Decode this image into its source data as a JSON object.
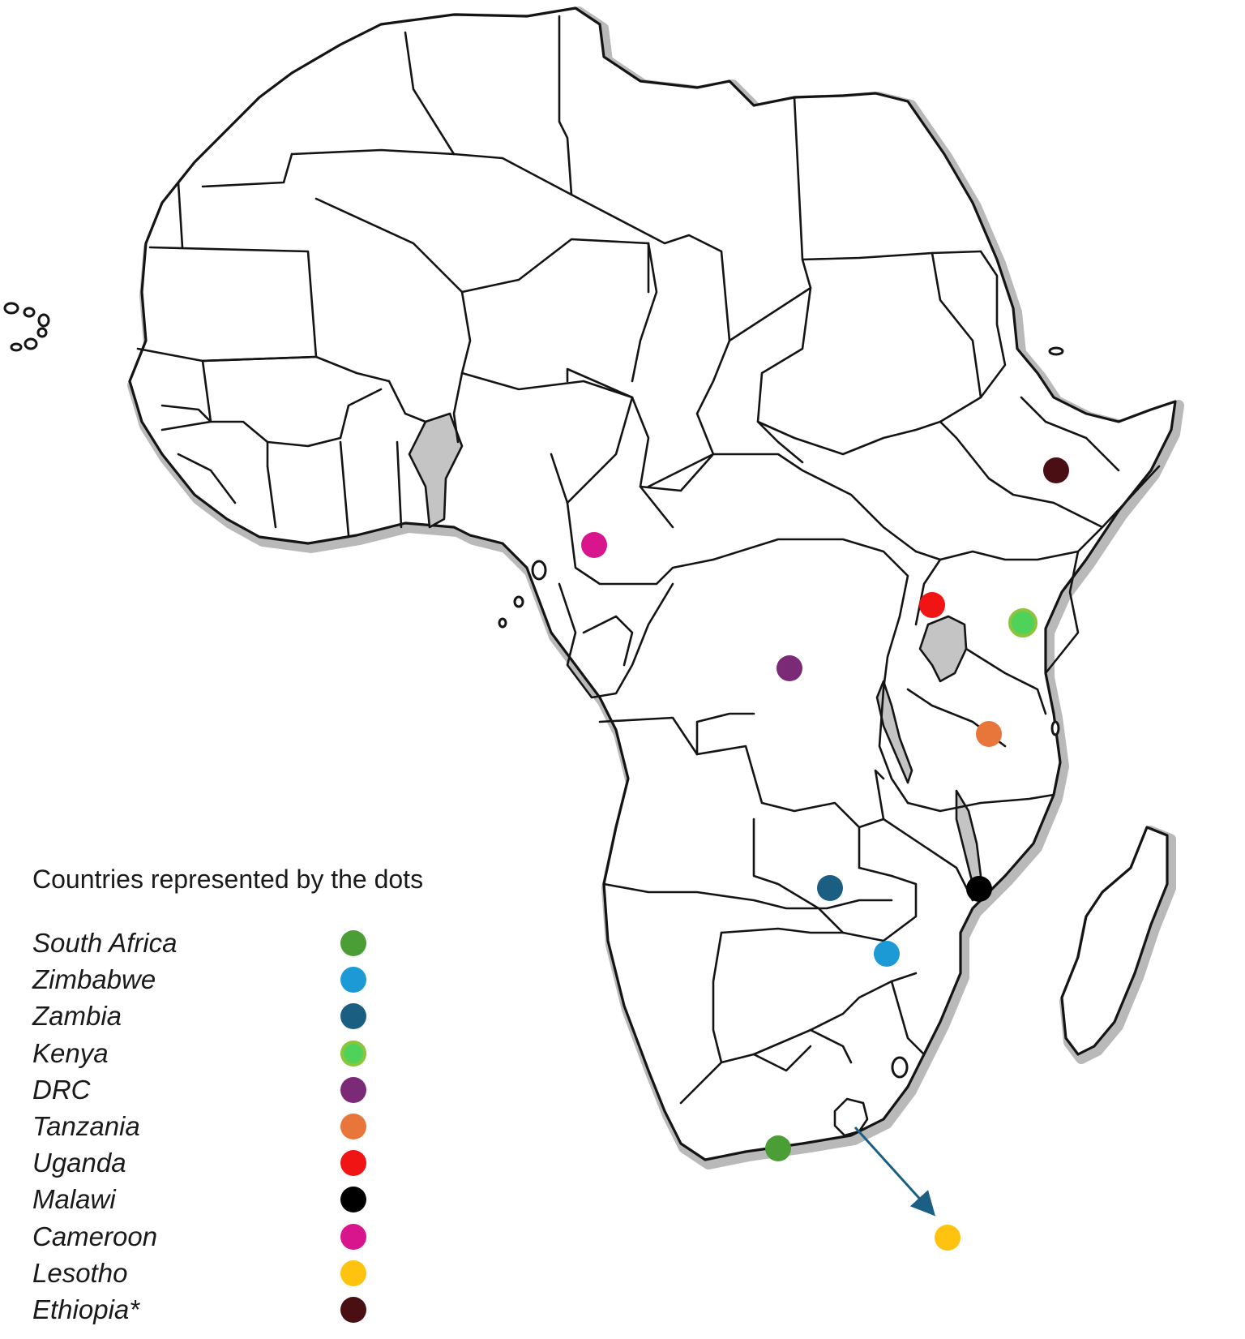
{
  "legend": {
    "title": "Countries represented by the dots",
    "items": [
      {
        "key": "south-africa",
        "name": "South Africa",
        "color": "#4a9e35"
      },
      {
        "key": "zimbabwe",
        "name": "Zimbabwe",
        "color": "#1b9ad6"
      },
      {
        "key": "zambia",
        "name": "Zambia",
        "color": "#1a5f82"
      },
      {
        "key": "kenya",
        "name": "Kenya",
        "color": "#4fd25a",
        "ring": "#8cc43c"
      },
      {
        "key": "drc",
        "name": "DRC",
        "color": "#7a2a76"
      },
      {
        "key": "tanzania",
        "name": "Tanzania",
        "color": "#e8763a"
      },
      {
        "key": "uganda",
        "name": "Uganda",
        "color": "#f01414"
      },
      {
        "key": "malawi",
        "name": "Malawi",
        "color": "#000000"
      },
      {
        "key": "cameroon",
        "name": "Cameroon",
        "color": "#d9158e"
      },
      {
        "key": "lesotho",
        "name": "Lesotho",
        "color": "#ffc20e"
      },
      {
        "key": "ethiopia",
        "name": "Ethiopia*",
        "color": "#4a0f12"
      }
    ]
  },
  "arrow_color": "#1c5f85",
  "water_color": "#c4c4c4"
}
